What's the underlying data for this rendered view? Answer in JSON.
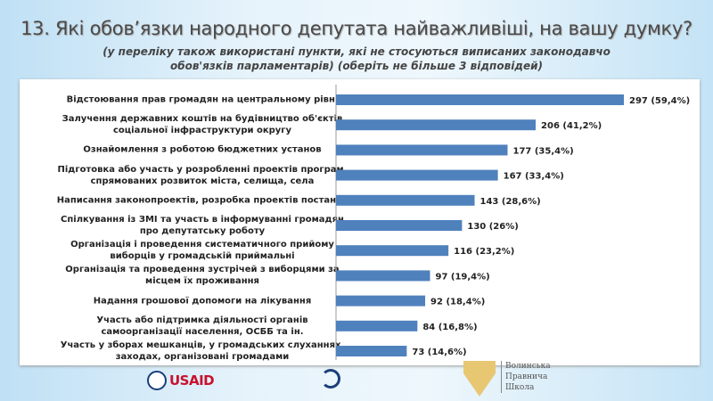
{
  "title": "13. Які обов’язки народного депутата найважливіші,  на вашу думку?",
  "subtitle_line1": "(у переліку також використані пункти, які не стосуються виписаних  законодавчо",
  "subtitle_line2": "обов'язків парламентарів) (оберіть не більше 3 відповідей)",
  "chart_data": {
    "type": "bar",
    "orientation": "horizontal",
    "color": "#4f81bd",
    "categories": [
      "Відстоювання прав громадян на центральному рівні",
      "Залучення державних коштів на будівництво об'єктів соціальної інфраструктури округу",
      "Ознайомлення з роботою бюджетних установ",
      "Підготовка або участь у розробленні проектів програм, спрямованих розвиток міста, селища, села",
      "Написання законопроектів, розробка проектів постанов",
      "Спілкування із ЗМІ та участь в інформуванні громадян про депутатську роботу",
      "Організація і проведення систематичного прийому виборців у громадській приймальні",
      "Організація та проведення зустрічей з виборцями за місцем їх проживання",
      "Надання грошової допомоги на лікування",
      "Участь або підтримка діяльності органів самоорганізації населення, ОСББ та ін.",
      "Участь у зборах мешканців, у громадських слуханнях, заходах, організовані громадами"
    ],
    "values": [
      297,
      206,
      177,
      167,
      143,
      130,
      116,
      97,
      92,
      84,
      73
    ],
    "data_labels": [
      "297 (59,4%)",
      "206 (41,2%)",
      "177 (35,4%)",
      "167 (33,4%)",
      "143 (28,6%)",
      "130 (26%)",
      "116 (23,2%)",
      "97 (19,4%)",
      "92 (18,4%)",
      "84 (16,8%)",
      "73 (14,6%)"
    ]
  },
  "logos": {
    "usaid": "USAID",
    "school": [
      "Волинська",
      "Правнича",
      "Школа"
    ]
  }
}
